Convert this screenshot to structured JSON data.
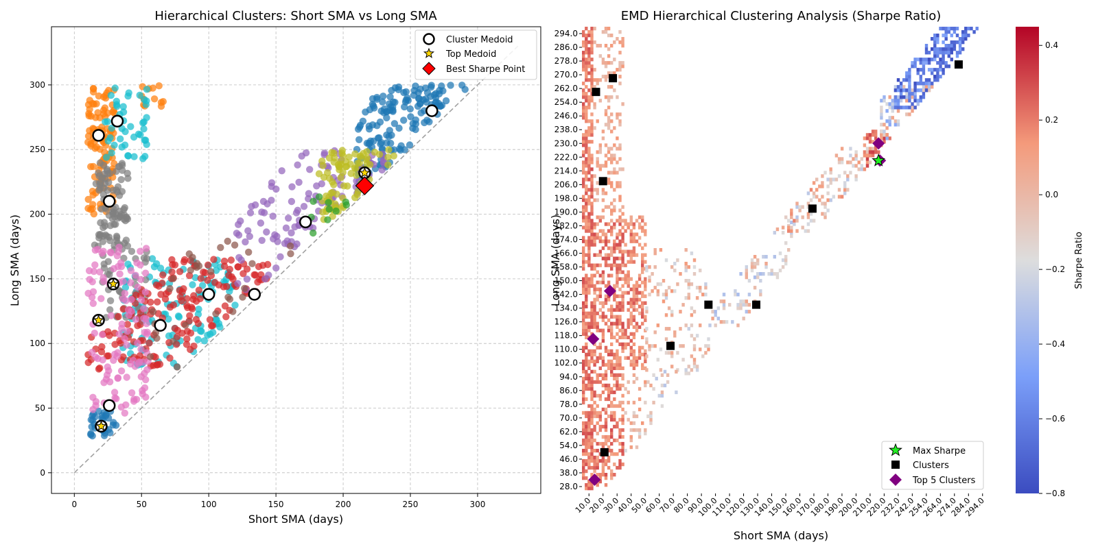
{
  "chart_data": [
    {
      "type": "scatter",
      "title": "Hierarchical Clusters: Short SMA vs Long SMA",
      "xlabel": "Short SMA (days)",
      "ylabel": "Long SMA (days)",
      "xlim": [
        -17,
        347
      ],
      "ylim": [
        -16,
        345
      ],
      "xticks": [
        0,
        50,
        100,
        150,
        200,
        250,
        300
      ],
      "yticks": [
        0,
        50,
        100,
        150,
        200,
        250,
        300
      ],
      "grid": true,
      "legend_position": "top-right",
      "legend": [
        "Cluster Medoid",
        "Top Medoid",
        "Best Sharpe Point"
      ],
      "diagonal": [
        [
          0,
          0
        ],
        [
          330,
          330
        ]
      ],
      "cluster_colors": [
        "#1f77b4",
        "#ff7f0e",
        "#2ca02c",
        "#d62728",
        "#9467bd",
        "#8c564b",
        "#e377c2",
        "#7f7f7f",
        "#bcbd22",
        "#17becf"
      ],
      "cluster_regions": [
        {
          "color": "#1f77b4",
          "count": 150,
          "x": [
            210,
            298
          ],
          "y": [
            205,
            300
          ],
          "diag": true
        },
        {
          "color": "#1f77b4",
          "count": 30,
          "x": [
            12,
            32
          ],
          "y": [
            28,
            50
          ]
        },
        {
          "color": "#ff7f0e",
          "count": 110,
          "x": [
            10,
            30
          ],
          "y": [
            200,
            300
          ]
        },
        {
          "color": "#ff7f0e",
          "count": 12,
          "x": [
            50,
            72
          ],
          "y": [
            282,
            300
          ]
        },
        {
          "color": "#17becf",
          "count": 45,
          "x": [
            22,
            55
          ],
          "y": [
            240,
            300
          ]
        },
        {
          "color": "#17becf",
          "count": 120,
          "x": [
            35,
            120
          ],
          "y": [
            82,
            166
          ]
        },
        {
          "color": "#7f7f7f",
          "count": 90,
          "x": [
            15,
            40
          ],
          "y": [
            175,
            240
          ]
        },
        {
          "color": "#7f7f7f",
          "count": 40,
          "x": [
            20,
            55
          ],
          "y": [
            120,
            175
          ]
        },
        {
          "color": "#d62728",
          "count": 170,
          "x": [
            10,
            150
          ],
          "y": [
            80,
            165
          ],
          "diag": true
        },
        {
          "color": "#e377c2",
          "count": 120,
          "x": [
            10,
            55
          ],
          "y": [
            40,
            175
          ]
        },
        {
          "color": "#9467bd",
          "count": 110,
          "x": [
            120,
            235
          ],
          "y": [
            135,
            250
          ],
          "diag": true
        },
        {
          "color": "#bcbd22",
          "count": 80,
          "x": [
            182,
            242
          ],
          "y": [
            195,
            250
          ],
          "diag": true
        },
        {
          "color": "#2ca02c",
          "count": 10,
          "x": [
            175,
            212
          ],
          "y": [
            170,
            215
          ],
          "diag": true
        },
        {
          "color": "#8c564b",
          "count": 30,
          "x": [
            50,
            172
          ],
          "y": [
            45,
            180
          ],
          "diag": true
        }
      ],
      "cluster_medoids": [
        [
          18,
          261
        ],
        [
          32,
          272
        ],
        [
          26,
          210
        ],
        [
          29,
          146
        ],
        [
          18,
          118
        ],
        [
          26,
          52
        ],
        [
          20,
          36
        ],
        [
          64,
          114
        ],
        [
          100,
          138
        ],
        [
          134,
          138
        ],
        [
          172,
          194
        ],
        [
          216,
          232
        ],
        [
          266,
          280
        ]
      ],
      "top_medoids": [
        [
          29,
          146
        ],
        [
          18,
          118
        ],
        [
          20,
          36
        ],
        [
          216,
          232
        ],
        [
          216,
          222
        ]
      ],
      "best_sharpe_point": [
        216,
        222
      ]
    },
    {
      "type": "heatmap",
      "title": "EMD Hierarchical Clustering Analysis (Sharpe Ratio)",
      "xlabel": "Short SMA (days)",
      "ylabel": "Long SMA (days)",
      "x_range": [
        10,
        300
      ],
      "y_range": [
        28,
        300
      ],
      "cell_step": 2,
      "x_ticks": [
        "10.0",
        "20.0",
        "30.0",
        "40.0",
        "50.0",
        "60.0",
        "70.0",
        "80.0",
        "90.0",
        "100.0",
        "110.0",
        "120.0",
        "130.0",
        "140.0",
        "150.0",
        "160.0",
        "170.0",
        "180.0",
        "190.0",
        "200.0",
        "210.0",
        "220.0",
        "232.0",
        "242.0",
        "254.0",
        "264.0",
        "274.0",
        "284.0",
        "294.0"
      ],
      "y_ticks": [
        "294.0",
        "286.0",
        "278.0",
        "270.0",
        "262.0",
        "254.0",
        "246.0",
        "238.0",
        "230.0",
        "222.0",
        "214.0",
        "206.0",
        "198.0",
        "190.0",
        "182.0",
        "174.0",
        "166.0",
        "158.0",
        "150.0",
        "142.0",
        "134.0",
        "126.0",
        "118.0",
        "110.0",
        "102.0",
        "94.0",
        "86.0",
        "78.0",
        "70.0",
        "62.0",
        "54.0",
        "46.0",
        "38.0",
        "28.0"
      ],
      "colorbar_label": "Sharpe Ratio",
      "colorbar_range": [
        -0.8,
        0.45
      ],
      "colorbar_ticks": [
        0.4,
        0.2,
        0.0,
        -0.2,
        -0.4,
        -0.6,
        -0.8
      ],
      "colormap": "coolwarm",
      "legend_position": "bottom-right",
      "legend": [
        "Max Sharpe",
        "Clusters",
        "Top 5 Clusters"
      ],
      "zones": [
        {
          "x": [
            10,
            18
          ],
          "y": [
            30,
            300
          ],
          "density": 0.7,
          "v": [
            0.1,
            0.3
          ]
        },
        {
          "x": [
            18,
            40
          ],
          "y": [
            30,
            190
          ],
          "density": 0.5,
          "v": [
            0.05,
            0.3
          ]
        },
        {
          "x": [
            18,
            40
          ],
          "y": [
            190,
            300
          ],
          "density": 0.25,
          "v": [
            -0.05,
            0.15
          ]
        },
        {
          "x": [
            40,
            55
          ],
          "y": [
            100,
            190
          ],
          "density": 0.45,
          "v": [
            0.05,
            0.28
          ]
        },
        {
          "x": [
            40,
            60
          ],
          "y": [
            40,
            100
          ],
          "density": 0.2,
          "v": [
            -0.2,
            0.15
          ]
        },
        {
          "x": [
            55,
            100
          ],
          "y": [
            95,
            170
          ],
          "density": 0.18,
          "v": [
            -0.25,
            0.15
          ]
        },
        {
          "x": [
            60,
            80
          ],
          "y": [
            78,
            100
          ],
          "density": 0.15,
          "v": [
            -0.3,
            0.05
          ]
        },
        {
          "x": [
            100,
            160
          ],
          "y": [
            125,
            200
          ],
          "density": 0.2,
          "v": [
            -0.35,
            0.1
          ],
          "diag": true
        },
        {
          "x": [
            150,
            220
          ],
          "y": [
            180,
            230
          ],
          "density": 0.28,
          "v": [
            -0.3,
            0.2
          ],
          "diag": true
        },
        {
          "x": [
            210,
            232
          ],
          "y": [
            200,
            240
          ],
          "density": 0.6,
          "v": [
            0.1,
            0.35
          ],
          "diag": true
        },
        {
          "x": [
            222,
            262
          ],
          "y": [
            222,
            265
          ],
          "density": 0.45,
          "v": [
            -0.45,
            0.15
          ],
          "diag": true
        },
        {
          "x": [
            232,
            300
          ],
          "y": [
            252,
            300
          ],
          "density": 0.5,
          "v": [
            -0.8,
            -0.45
          ],
          "diag": true
        }
      ],
      "max_sharpe": [
        221,
        222
      ],
      "cluster_markers": [
        [
          26,
          52
        ],
        [
          20,
          262
        ],
        [
          32,
          270
        ],
        [
          25,
          210
        ],
        [
          73,
          114
        ],
        [
          100,
          138
        ],
        [
          134,
          138
        ],
        [
          174,
          194
        ],
        [
          278,
          278
        ]
      ],
      "top5_clusters": [
        [
          19,
          36
        ],
        [
          18,
          118
        ],
        [
          30,
          146
        ],
        [
          221,
          232
        ],
        [
          222,
          222
        ]
      ]
    }
  ]
}
